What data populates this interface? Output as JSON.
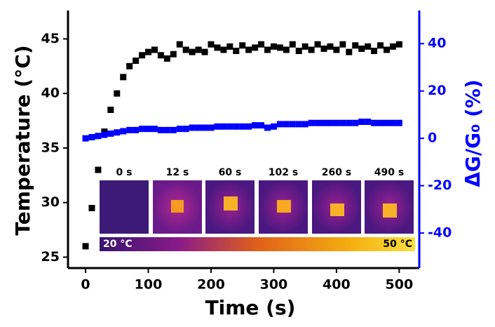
{
  "chart_data": {
    "type": "scatter",
    "x_label": "Time (s)",
    "y_label": "Temperature (°C)",
    "y2_label": "ΔG/G₀ (%)",
    "xlim": [
      -28,
      532
    ],
    "xticks": [
      0,
      100,
      200,
      300,
      400,
      500
    ],
    "ylim": [
      24,
      47.6
    ],
    "yticks": [
      25,
      30,
      35,
      40,
      45
    ],
    "y2lim": [
      -54.8,
      54
    ],
    "y2ticks": [
      -40,
      -20,
      0,
      20,
      40
    ],
    "x": [
      0,
      10,
      20,
      30,
      40,
      50,
      60,
      70,
      80,
      90,
      100,
      110,
      120,
      130,
      140,
      150,
      160,
      170,
      180,
      190,
      200,
      210,
      220,
      230,
      240,
      250,
      260,
      270,
      280,
      290,
      300,
      310,
      320,
      330,
      340,
      350,
      360,
      370,
      380,
      390,
      400,
      410,
      420,
      430,
      440,
      450,
      460,
      470,
      480,
      490,
      500
    ],
    "series": [
      {
        "color": "#000000",
        "axis": "y",
        "values": [
          26,
          29.5,
          33,
          36.5,
          38.5,
          40,
          41.5,
          42.5,
          43,
          43.5,
          43.8,
          44,
          43.5,
          43.2,
          43.6,
          44.5,
          44,
          43.8,
          44,
          43.8,
          44.5,
          44.2,
          44,
          44.3,
          43.9,
          44.4,
          44,
          44.2,
          44.5,
          44,
          44.3,
          44.2,
          44,
          44.5,
          43.9,
          44.3,
          44,
          44.5,
          44.1,
          44.3,
          44,
          44.5,
          43.8,
          44.4,
          44.1,
          44.3,
          43.9,
          44.4,
          44,
          44.3,
          44.5
        ]
      },
      {
        "color": "#0000ff",
        "axis": "y2",
        "values": [
          0,
          0.5,
          1,
          1.5,
          2,
          2.5,
          3,
          3.5,
          3.5,
          4,
          4,
          4,
          3.5,
          3.5,
          3.5,
          4,
          4,
          4.5,
          4.5,
          4.5,
          4.5,
          5,
          5,
          5,
          5,
          5,
          5,
          5.5,
          5.5,
          4.5,
          5,
          6,
          6,
          6,
          6,
          6,
          6.5,
          6.5,
          6.5,
          6.5,
          6.5,
          6.5,
          6.5,
          6.5,
          7,
          7,
          6.5,
          6.5,
          6.5,
          6.5,
          6.5
        ]
      }
    ],
    "inset_labels": [
      "0 s",
      "12 s",
      "60 s",
      "102 s",
      "260 s",
      "490 s"
    ],
    "colorbar_labels": [
      "20 °C",
      "50 °C"
    ]
  }
}
